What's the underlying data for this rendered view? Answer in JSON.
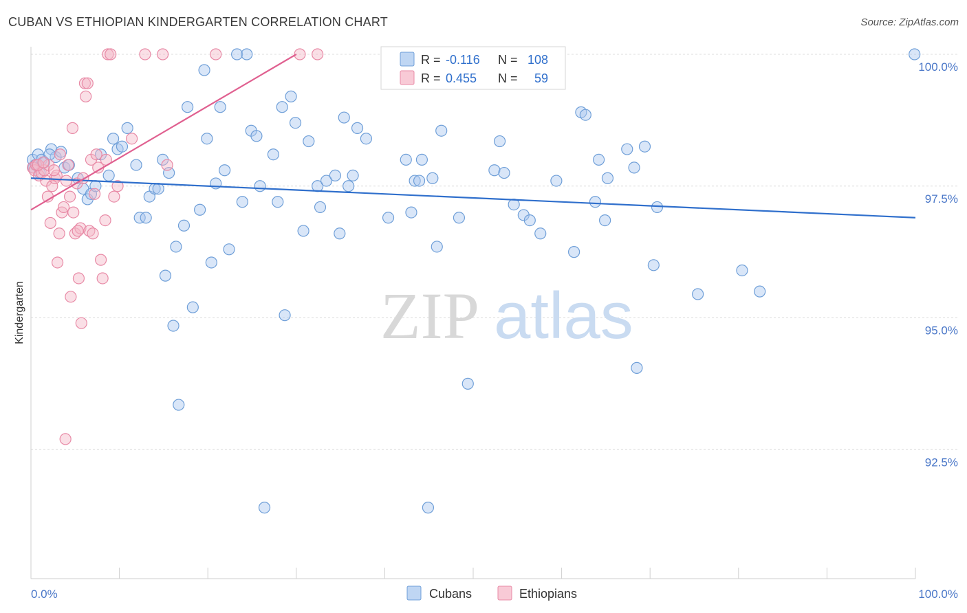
{
  "title": "CUBAN VS ETHIOPIAN KINDERGARTEN CORRELATION CHART",
  "source": "Source: ZipAtlas.com",
  "watermark": {
    "zip": "ZIP",
    "atlas": "atlas"
  },
  "colors": {
    "blue_fill": "#aac8ef",
    "blue_stroke": "#6f9fd8",
    "blue_line": "#2f6fcc",
    "pink_fill": "#f5b8c8",
    "pink_stroke": "#e88aa6",
    "pink_line": "#e06090",
    "tick": "#4a77c8",
    "grid": "#dcdcdc"
  },
  "legend": {
    "row1": {
      "r_label": "R = ",
      "r_value": "-0.116",
      "n_label": "N = ",
      "n_value": "108"
    },
    "row2": {
      "r_label": "R = ",
      "r_value": "0.455",
      "n_label": "N = ",
      "n_value": "59"
    }
  },
  "chart_data": {
    "type": "scatter",
    "title": "CUBAN VS ETHIOPIAN KINDERGARTEN CORRELATION CHART",
    "xlabel": "",
    "ylabel": "Kindergarten",
    "xlim": [
      0,
      100
    ],
    "ylim": [
      90.5,
      100.3
    ],
    "x_tick_labels": [
      "0.0%",
      "100.0%"
    ],
    "y_ticks": [
      92.5,
      95.0,
      97.5,
      100.0
    ],
    "y_tick_labels": [
      "92.5%",
      "95.0%",
      "97.5%",
      "100.0%"
    ],
    "grid": true,
    "legend_position": "top-center",
    "series": [
      {
        "name": "Cubans",
        "r": -0.116,
        "n": 108,
        "trend": {
          "x": [
            0,
            100
          ],
          "y": [
            97.65,
            96.9
          ]
        },
        "points": [
          [
            0.2,
            98.0
          ],
          [
            0.5,
            97.9
          ],
          [
            0.8,
            98.1
          ],
          [
            1.2,
            98.0
          ],
          [
            1.5,
            97.95
          ],
          [
            2.3,
            98.2
          ],
          [
            2.8,
            98.05
          ],
          [
            3.4,
            98.15
          ],
          [
            3.8,
            97.85
          ],
          [
            4.3,
            97.9
          ],
          [
            5.3,
            97.65
          ],
          [
            5.9,
            97.45
          ],
          [
            6.4,
            97.25
          ],
          [
            6.8,
            97.35
          ],
          [
            7.3,
            97.5
          ],
          [
            7.9,
            98.1
          ],
          [
            8.8,
            97.7
          ],
          [
            9.3,
            98.4
          ],
          [
            9.8,
            98.2
          ],
          [
            10.3,
            98.25
          ],
          [
            10.9,
            98.6
          ],
          [
            11.9,
            97.9
          ],
          [
            12.3,
            96.9
          ],
          [
            13.0,
            96.9
          ],
          [
            13.4,
            97.3
          ],
          [
            14.0,
            97.45
          ],
          [
            14.4,
            97.45
          ],
          [
            14.9,
            98.0
          ],
          [
            15.2,
            95.8
          ],
          [
            15.6,
            97.75
          ],
          [
            16.1,
            94.85
          ],
          [
            16.4,
            96.35
          ],
          [
            16.7,
            93.35
          ],
          [
            17.3,
            96.75
          ],
          [
            17.7,
            99.0
          ],
          [
            18.3,
            95.2
          ],
          [
            19.1,
            97.05
          ],
          [
            19.6,
            99.7
          ],
          [
            19.9,
            98.4
          ],
          [
            20.4,
            96.05
          ],
          [
            20.9,
            97.55
          ],
          [
            21.4,
            99.0
          ],
          [
            21.9,
            97.8
          ],
          [
            22.4,
            96.3
          ],
          [
            23.3,
            100.0
          ],
          [
            23.9,
            97.2
          ],
          [
            24.4,
            100.0
          ],
          [
            24.9,
            98.55
          ],
          [
            25.5,
            98.45
          ],
          [
            25.9,
            97.5
          ],
          [
            26.4,
            91.4
          ],
          [
            27.4,
            98.1
          ],
          [
            27.9,
            97.2
          ],
          [
            28.4,
            99.0
          ],
          [
            28.7,
            95.05
          ],
          [
            29.4,
            99.2
          ],
          [
            29.9,
            98.7
          ],
          [
            30.8,
            96.65
          ],
          [
            31.4,
            98.35
          ],
          [
            32.4,
            97.5
          ],
          [
            32.7,
            97.1
          ],
          [
            33.4,
            97.6
          ],
          [
            34.4,
            97.7
          ],
          [
            34.9,
            96.6
          ],
          [
            35.4,
            98.8
          ],
          [
            35.9,
            97.5
          ],
          [
            36.4,
            97.7
          ],
          [
            36.9,
            98.6
          ],
          [
            37.9,
            98.4
          ],
          [
            40.4,
            96.9
          ],
          [
            42.4,
            98.0
          ],
          [
            43.0,
            97.0
          ],
          [
            43.4,
            97.6
          ],
          [
            43.9,
            97.6
          ],
          [
            44.2,
            98.0
          ],
          [
            44.9,
            91.4
          ],
          [
            45.4,
            97.65
          ],
          [
            45.9,
            96.35
          ],
          [
            46.4,
            98.55
          ],
          [
            48.4,
            96.9
          ],
          [
            49.4,
            93.75
          ],
          [
            51.4,
            100.0
          ],
          [
            52.4,
            97.8
          ],
          [
            53.0,
            98.35
          ],
          [
            53.5,
            97.75
          ],
          [
            54.6,
            97.15
          ],
          [
            55.7,
            96.95
          ],
          [
            56.4,
            96.85
          ],
          [
            57.6,
            96.6
          ],
          [
            59.4,
            97.6
          ],
          [
            61.4,
            96.25
          ],
          [
            62.2,
            98.9
          ],
          [
            62.7,
            98.85
          ],
          [
            63.8,
            97.2
          ],
          [
            64.2,
            98.0
          ],
          [
            64.9,
            96.85
          ],
          [
            65.2,
            97.65
          ],
          [
            67.4,
            98.2
          ],
          [
            68.2,
            97.85
          ],
          [
            68.5,
            94.05
          ],
          [
            69.4,
            98.25
          ],
          [
            70.4,
            96.0
          ],
          [
            70.8,
            97.1
          ],
          [
            75.4,
            95.45
          ],
          [
            80.4,
            95.9
          ],
          [
            82.4,
            95.5
          ],
          [
            99.9,
            100.0
          ],
          [
            0.3,
            97.85
          ],
          [
            1.0,
            97.75
          ],
          [
            2.1,
            98.1
          ]
        ]
      },
      {
        "name": "Ethiopians",
        "r": 0.455,
        "n": 59,
        "trend": {
          "x": [
            0,
            30
          ],
          "y": [
            97.05,
            100.0
          ]
        },
        "points": [
          [
            0.2,
            97.85
          ],
          [
            0.4,
            97.8
          ],
          [
            0.6,
            97.9
          ],
          [
            0.9,
            97.7
          ],
          [
            1.2,
            97.75
          ],
          [
            1.5,
            97.8
          ],
          [
            1.7,
            97.6
          ],
          [
            1.9,
            97.3
          ],
          [
            2.0,
            97.9
          ],
          [
            2.2,
            96.8
          ],
          [
            2.4,
            97.5
          ],
          [
            2.7,
            97.65
          ],
          [
            2.9,
            97.7
          ],
          [
            3.0,
            96.05
          ],
          [
            3.2,
            96.6
          ],
          [
            3.3,
            98.1
          ],
          [
            3.5,
            97.0
          ],
          [
            3.7,
            97.1
          ],
          [
            3.9,
            92.7
          ],
          [
            4.0,
            97.6
          ],
          [
            4.2,
            97.9
          ],
          [
            4.4,
            97.3
          ],
          [
            4.5,
            95.4
          ],
          [
            4.7,
            98.6
          ],
          [
            4.8,
            97.0
          ],
          [
            5.0,
            96.6
          ],
          [
            5.2,
            97.55
          ],
          [
            5.4,
            95.75
          ],
          [
            5.6,
            96.7
          ],
          [
            5.7,
            94.9
          ],
          [
            5.9,
            97.65
          ],
          [
            6.1,
            99.45
          ],
          [
            6.2,
            99.2
          ],
          [
            6.4,
            99.45
          ],
          [
            6.6,
            96.65
          ],
          [
            6.8,
            98.0
          ],
          [
            7.0,
            96.6
          ],
          [
            7.2,
            97.35
          ],
          [
            7.4,
            98.1
          ],
          [
            7.6,
            97.85
          ],
          [
            7.9,
            96.1
          ],
          [
            8.1,
            95.75
          ],
          [
            8.4,
            96.85
          ],
          [
            8.5,
            98.0
          ],
          [
            8.7,
            100.0
          ],
          [
            9.0,
            100.0
          ],
          [
            9.4,
            97.3
          ],
          [
            9.8,
            97.5
          ],
          [
            11.4,
            98.4
          ],
          [
            12.9,
            100.0
          ],
          [
            14.9,
            100.0
          ],
          [
            15.4,
            97.9
          ],
          [
            20.9,
            100.0
          ],
          [
            30.4,
            100.0
          ],
          [
            32.4,
            100.0
          ],
          [
            0.8,
            97.9
          ],
          [
            1.4,
            97.95
          ],
          [
            2.6,
            97.8
          ],
          [
            5.3,
            96.65
          ]
        ]
      }
    ]
  }
}
